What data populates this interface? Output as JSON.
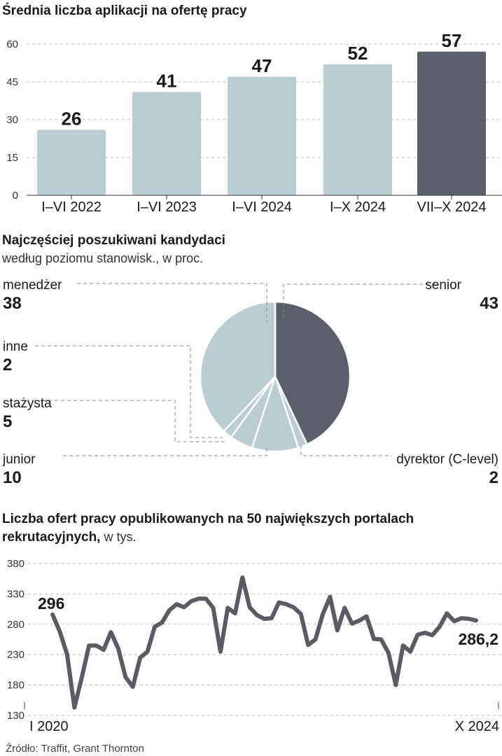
{
  "colors": {
    "light": "#b9cdd2",
    "dark": "#5d5e6b",
    "line": "#5a5b64"
  },
  "chart_data": [
    {
      "type": "bar",
      "title": "Średnia liczba aplikacji na ofertę pracy",
      "categories": [
        "I–VI 2022",
        "I–VI 2023",
        "I–VI 2024",
        "I–X 2024",
        "VII–X 2024"
      ],
      "values": [
        26,
        41,
        47,
        52,
        57
      ],
      "value_labels": [
        "26",
        "41",
        "47",
        "52",
        "57"
      ],
      "highlight_index": 4,
      "yticks": [
        "0",
        "15",
        "30",
        "45",
        "60"
      ],
      "ylim": [
        0,
        60
      ]
    },
    {
      "type": "pie",
      "title": "Najczęściej poszukiwani kandydaci",
      "subtitle": "według poziomu stanowisk., w proc.",
      "slices": [
        {
          "name": "senior",
          "value": 43,
          "label": "43"
        },
        {
          "name": "dyrektor (C-level)",
          "value": 2,
          "label": "2"
        },
        {
          "name": "junior",
          "value": 10,
          "label": "10"
        },
        {
          "name": "stażysta",
          "value": 5,
          "label": "5"
        },
        {
          "name": "inne",
          "value": 2,
          "label": "2"
        },
        {
          "name": "menedżer",
          "value": 38,
          "label": "38"
        }
      ]
    },
    {
      "type": "line",
      "title": "Liczba ofert pracy opublikowanych na 50 największych portalach",
      "title2": "rekrutacyjnych,",
      "title2_suffix": " w tys.",
      "x_start_label": "I 2020",
      "x_end_label": "X 2024",
      "yticks": [
        "380",
        "330",
        "280",
        "230",
        "180",
        "130"
      ],
      "ylim": [
        130,
        380
      ],
      "start_label": "296",
      "end_label": "286,2",
      "values": [
        296,
        268,
        230,
        143,
        192,
        245,
        245,
        238,
        267,
        240,
        193,
        177,
        225,
        235,
        276,
        283,
        303,
        313,
        308,
        318,
        322,
        322,
        307,
        235,
        307,
        298,
        357,
        308,
        295,
        289,
        290,
        316,
        313,
        308,
        297,
        246,
        255,
        296,
        325,
        270,
        307,
        281,
        286,
        293,
        256,
        255,
        233,
        180,
        245,
        235,
        263,
        266,
        262,
        276,
        298,
        285,
        290,
        289,
        286.2
      ]
    }
  ],
  "source": "Źródło: Traffit, Grant Thornton"
}
